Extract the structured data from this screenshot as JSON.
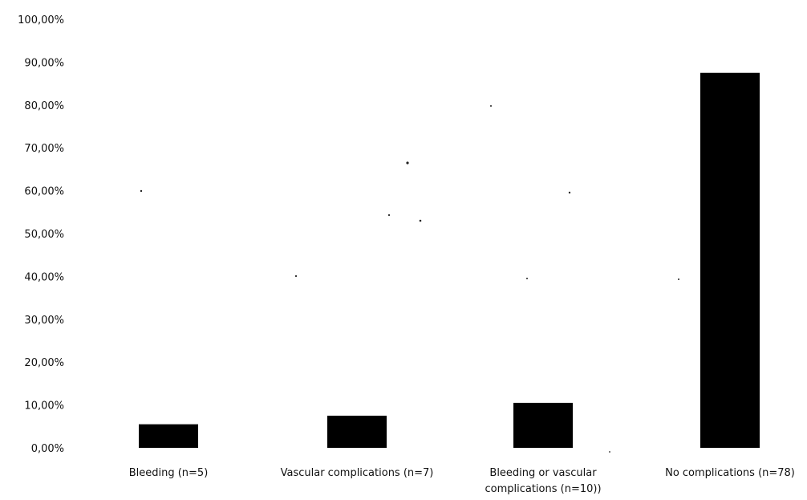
{
  "chart_data": {
    "type": "bar",
    "categories": [
      [
        "Bleeding (n=5)"
      ],
      [
        "Vascular complications (n=7)"
      ],
      [
        "Bleeding or vascular",
        "complications (n=10))"
      ],
      [
        "No complications (n=78)"
      ]
    ],
    "values": [
      5.5,
      7.5,
      10.5,
      87.5
    ],
    "yticks": [
      "0,00%",
      "10,00%",
      "20,00%",
      "30,00%",
      "40,00%",
      "50,00%",
      "60,00%",
      "70,00%",
      "80,00%",
      "90,00%",
      "100,00%"
    ],
    "ylim": [
      0,
      100
    ],
    "bar_color": "#000000",
    "grid": false,
    "title": "",
    "xlabel": "",
    "ylabel": ""
  }
}
